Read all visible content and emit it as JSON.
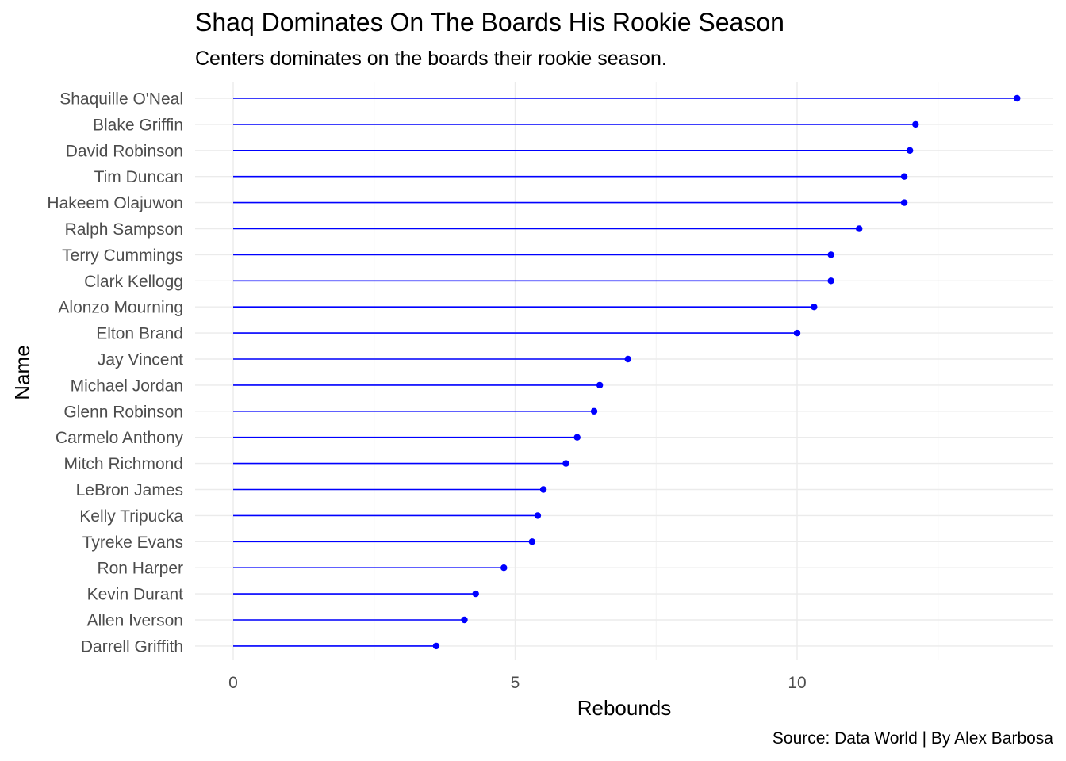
{
  "chart_data": {
    "type": "lollipop",
    "title": "Shaq Dominates On The Boards His Rookie Season",
    "subtitle": "Centers dominates on the boards their rookie season.",
    "caption": "Source: Data World | By Alex Barbosa",
    "xlabel": "Rebounds",
    "ylabel": "Name",
    "xlim": [
      -0.7,
      14.6
    ],
    "xticks": [
      0,
      5,
      10
    ],
    "grid": true,
    "color": "#0000ff",
    "categories": [
      "Shaquille O'Neal",
      "Blake Griffin",
      "David Robinson",
      "Tim Duncan",
      "Hakeem Olajuwon",
      "Ralph Sampson",
      "Terry Cummings",
      "Clark Kellogg",
      "Alonzo Mourning",
      "Elton Brand",
      "Jay Vincent",
      "Michael Jordan",
      "Glenn Robinson",
      "Carmelo Anthony",
      "Mitch Richmond",
      "LeBron James",
      "Kelly Tripucka",
      "Tyreke Evans",
      "Ron Harper",
      "Kevin Durant",
      "Allen Iverson",
      "Darrell Griffith"
    ],
    "values": [
      13.9,
      12.1,
      12.0,
      11.9,
      11.9,
      11.1,
      10.6,
      10.6,
      10.3,
      10.0,
      7.0,
      6.5,
      6.4,
      6.1,
      5.9,
      5.5,
      5.4,
      5.3,
      4.8,
      4.3,
      4.1,
      3.6
    ]
  }
}
